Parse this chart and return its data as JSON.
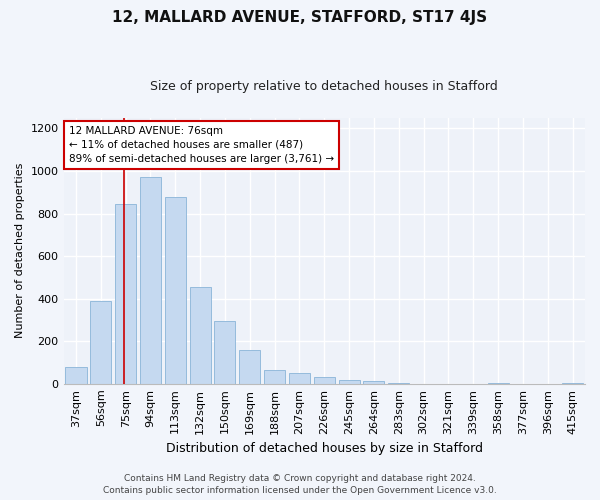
{
  "title": "12, MALLARD AVENUE, STAFFORD, ST17 4JS",
  "subtitle": "Size of property relative to detached houses in Stafford",
  "xlabel": "Distribution of detached houses by size in Stafford",
  "ylabel": "Number of detached properties",
  "categories": [
    "37sqm",
    "56sqm",
    "75sqm",
    "94sqm",
    "113sqm",
    "132sqm",
    "150sqm",
    "169sqm",
    "188sqm",
    "207sqm",
    "226sqm",
    "245sqm",
    "264sqm",
    "283sqm",
    "302sqm",
    "321sqm",
    "339sqm",
    "358sqm",
    "377sqm",
    "396sqm",
    "415sqm"
  ],
  "values": [
    80,
    390,
    845,
    970,
    880,
    455,
    295,
    160,
    65,
    50,
    30,
    20,
    15,
    5,
    0,
    0,
    0,
    5,
    0,
    0,
    5
  ],
  "bar_color": "#c5d9f0",
  "bar_edge_color": "#8ab4d8",
  "vline_x": 1.92,
  "vline_color": "#cc0000",
  "annotation_text": "12 MALLARD AVENUE: 76sqm\n← 11% of detached houses are smaller (487)\n89% of semi-detached houses are larger (3,761) →",
  "annotation_box_color": "#ffffff",
  "annotation_box_edge": "#cc0000",
  "ylim": [
    0,
    1250
  ],
  "yticks": [
    0,
    200,
    400,
    600,
    800,
    1000,
    1200
  ],
  "background_color": "#f2f5fb",
  "plot_bg_color": "#eef2f9",
  "grid_color": "#ffffff",
  "footer_line1": "Contains HM Land Registry data © Crown copyright and database right 2024.",
  "footer_line2": "Contains public sector information licensed under the Open Government Licence v3.0.",
  "title_fontsize": 11,
  "subtitle_fontsize": 9,
  "xlabel_fontsize": 9,
  "ylabel_fontsize": 8,
  "tick_fontsize": 8,
  "annotation_fontsize": 7.5,
  "footer_fontsize": 6.5
}
